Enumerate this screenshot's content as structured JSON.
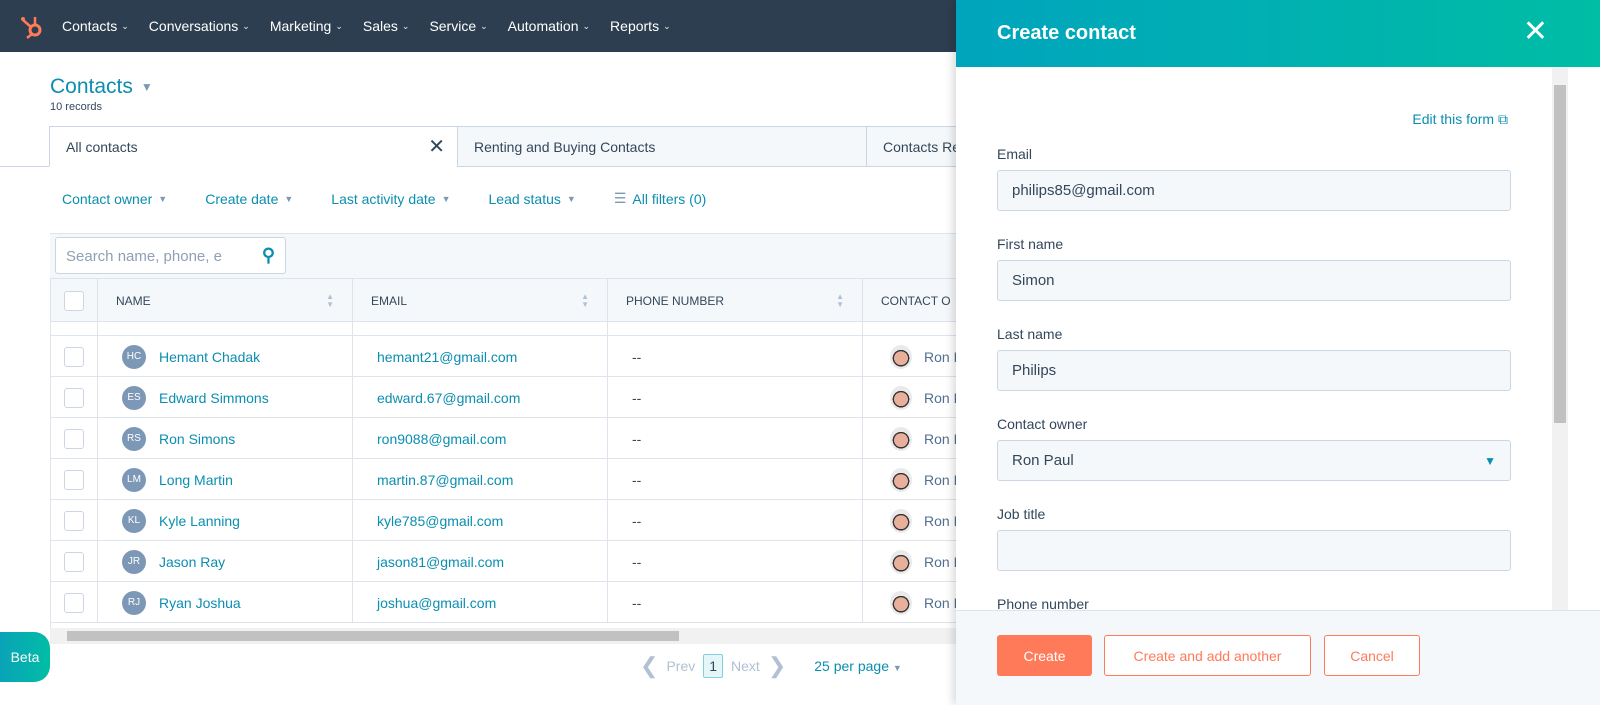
{
  "nav": {
    "items": [
      "Contacts",
      "Conversations",
      "Marketing",
      "Sales",
      "Service",
      "Automation",
      "Reports"
    ]
  },
  "page": {
    "title": "Contacts",
    "records": "10 records"
  },
  "tabs": [
    {
      "label": "All contacts"
    },
    {
      "label": "Renting and Buying Contacts"
    },
    {
      "label": "Contacts Re"
    }
  ],
  "filters": [
    "Contact owner",
    "Create date",
    "Last activity date",
    "Lead status"
  ],
  "all_filters": "All filters (0)",
  "search": {
    "placeholder": "Search name, phone, e"
  },
  "columns": [
    "NAME",
    "EMAIL",
    "PHONE NUMBER",
    "CONTACT O"
  ],
  "rows": [
    {
      "initials": "HC",
      "name": "Hemant Chadak",
      "email": "hemant21@gmail.com",
      "phone": "--",
      "owner": "Ron Paul"
    },
    {
      "initials": "ES",
      "name": "Edward Simmons",
      "email": "edward.67@gmail.com",
      "phone": "--",
      "owner": "Ron Paul"
    },
    {
      "initials": "RS",
      "name": "Ron Simons",
      "email": "ron9088@gmail.com",
      "phone": "--",
      "owner": "Ron Paul"
    },
    {
      "initials": "LM",
      "name": "Long Martin",
      "email": "martin.87@gmail.com",
      "phone": "--",
      "owner": "Ron Paul"
    },
    {
      "initials": "KL",
      "name": "Kyle Lanning",
      "email": "kyle785@gmail.com",
      "phone": "--",
      "owner": "Ron Paul"
    },
    {
      "initials": "JR",
      "name": "Jason Ray",
      "email": "jason81@gmail.com",
      "phone": "--",
      "owner": "Ron Paul"
    },
    {
      "initials": "RJ",
      "name": "Ryan Joshua",
      "email": "joshua@gmail.com",
      "phone": "--",
      "owner": "Ron Paul"
    }
  ],
  "pager": {
    "prev": "Prev",
    "page": "1",
    "next": "Next",
    "per_page": "25 per page"
  },
  "beta": "Beta",
  "panel": {
    "title": "Create contact",
    "edit_form": "Edit this form",
    "fields": [
      {
        "label": "Email",
        "value": "philips85@gmail.com"
      },
      {
        "label": "First name",
        "value": "Simon"
      },
      {
        "label": "Last name",
        "value": "Philips"
      },
      {
        "label": "Contact owner",
        "value": "Ron Paul"
      },
      {
        "label": "Job title",
        "value": ""
      },
      {
        "label": "Phone number",
        "value": ""
      }
    ],
    "create": "Create",
    "create_another": "Create and add another",
    "cancel": "Cancel"
  },
  "colors": {
    "nav": "#2d3e50",
    "accent": "#0b8eb0",
    "primary_button": "#ff7a59",
    "panel_header": "#00a4bd"
  }
}
